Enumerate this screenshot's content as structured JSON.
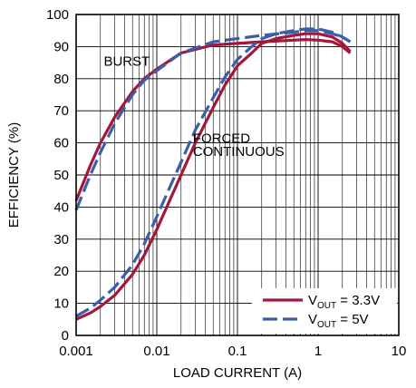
{
  "chart_data": {
    "type": "line",
    "title": "",
    "xlabel": "LOAD CURRENT (A)",
    "ylabel": "EFFICIENCY (%)",
    "xscale": "log",
    "xlim": [
      0.001,
      10
    ],
    "ylim": [
      0,
      100
    ],
    "xticks": [
      0.001,
      0.01,
      0.1,
      1,
      10
    ],
    "xtick_labels": [
      "0.001",
      "0.01",
      "0.1",
      "1",
      "10"
    ],
    "yticks": [
      0,
      10,
      20,
      30,
      40,
      50,
      60,
      70,
      80,
      90,
      100
    ],
    "ytick_labels": [
      "0",
      "10",
      "20",
      "30",
      "40",
      "50",
      "60",
      "70",
      "80",
      "90",
      "100"
    ],
    "grid": true,
    "legend_position": "bottom-right",
    "annotations": [
      {
        "text": "BURST",
        "x": 0.0022,
        "y": 84
      },
      {
        "text": "FORCED",
        "x": 0.028,
        "y": 60
      },
      {
        "text": "CONTINUOUS",
        "x": 0.028,
        "y": 56
      }
    ],
    "series": [
      {
        "legend_main": "V",
        "legend_sub": "OUT",
        "legend_tail": " = 3.3V",
        "color": "#a3173a",
        "dash": "solid",
        "curves": [
          {
            "x": [
              0.001,
              0.0015,
              0.002,
              0.003,
              0.005,
              0.007,
              0.01,
              0.02,
              0.05,
              0.1,
              0.2,
              0.5,
              0.7,
              1,
              1.5,
              2,
              2.5
            ],
            "y": [
              42,
              53,
              60,
              68,
              76,
              80,
              83,
              88,
              90.5,
              91,
              91.5,
              92,
              92.2,
              92,
              91.5,
              90,
              88
            ]
          },
          {
            "x": [
              0.001,
              0.0015,
              0.002,
              0.003,
              0.005,
              0.007,
              0.01,
              0.015,
              0.02,
              0.03,
              0.05,
              0.07,
              0.1,
              0.15,
              0.2,
              0.3,
              0.5,
              0.7,
              1,
              1.5,
              2,
              2.5
            ],
            "y": [
              5,
              7,
              9,
              12.5,
              19,
              25,
              33,
              43,
              50,
              60,
              71,
              78,
              84,
              88,
              91,
              92.5,
              93.5,
              94,
              94,
              93,
              91,
              88.5
            ]
          }
        ]
      },
      {
        "legend_main": "V",
        "legend_sub": "OUT",
        "legend_tail": " = 5V",
        "color": "#3b5eab",
        "dash": "dashed",
        "curves": [
          {
            "x": [
              0.001,
              0.0015,
              0.002,
              0.003,
              0.005,
              0.007,
              0.01,
              0.02,
              0.05,
              0.1,
              0.2,
              0.5,
              0.7,
              1,
              1.5,
              2,
              2.5
            ],
            "y": [
              39,
              50,
              57,
              66,
              75,
              79.5,
              82.5,
              88,
              91.5,
              92.5,
              93.5,
              94.5,
              95,
              95,
              94,
              93,
              91.5
            ]
          },
          {
            "x": [
              0.001,
              0.0015,
              0.002,
              0.003,
              0.005,
              0.007,
              0.01,
              0.015,
              0.02,
              0.03,
              0.05,
              0.07,
              0.1,
              0.15,
              0.2,
              0.3,
              0.5,
              0.7,
              1,
              1.5,
              2,
              2.5
            ],
            "y": [
              6,
              8.5,
              11,
              15,
              22,
              28.5,
              37,
              47,
              54,
              64,
              74,
              80.5,
              86,
              90,
              92.5,
              94,
              95,
              95.5,
              95.5,
              94.5,
              93,
              91.5
            ]
          }
        ]
      }
    ]
  }
}
